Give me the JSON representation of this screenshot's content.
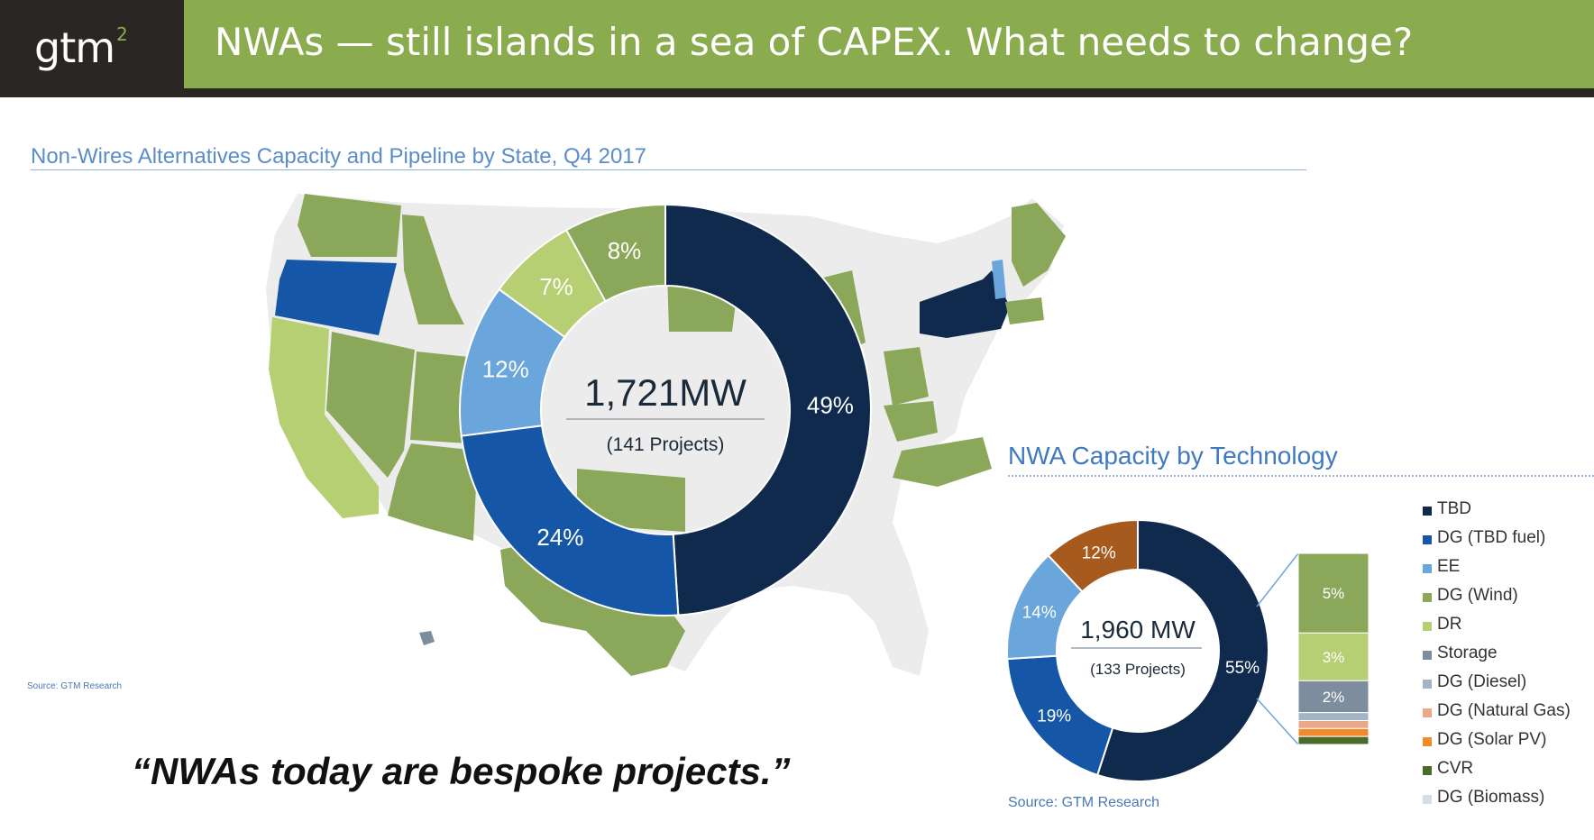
{
  "header": {
    "logo_text": "gtm",
    "logo_sup": "2",
    "title": "NWAs — still islands in a sea of CAPEX. What needs to change?"
  },
  "colors": {
    "header_bg": "#2a2624",
    "accent_green": "#8bab4f",
    "navy": "#0f2a4d",
    "blue": "#1557a6",
    "light_blue": "#6aa5db",
    "green": "#8ba85a",
    "light_green": "#b5cf72",
    "orange_brown": "#a65a1e"
  },
  "map": {
    "title": "Non-Wires Alternatives Capacity and Pipeline by State, Q4 2017",
    "source": "Source: GTM Research",
    "center_value": "1,721MW",
    "center_sub": "(141 Projects)"
  },
  "tech": {
    "title": "NWA Capacity by Technology",
    "source": "Source: GTM Research",
    "center_value": "1,960 MW",
    "center_sub": "(133 Projects)"
  },
  "quote": "“NWAs today are bespoke projects.”",
  "chart_data": [
    {
      "type": "pie",
      "title": "Non-Wires Alternatives Capacity and Pipeline by State, Q4 2017",
      "center_label": "1,721MW",
      "center_sublabel": "(141 Projects)",
      "slices": [
        {
          "label": "49%",
          "value": 49,
          "color": "#0f2a4d"
        },
        {
          "label": "24%",
          "value": 24,
          "color": "#1557a6"
        },
        {
          "label": "12%",
          "value": 12,
          "color": "#6aa5db"
        },
        {
          "label": "7%",
          "value": 7,
          "color": "#b5cf72"
        },
        {
          "label": "8%",
          "value": 8,
          "color": "#8ba85a"
        }
      ]
    },
    {
      "type": "pie",
      "title": "NWA Capacity by Technology",
      "center_label": "1,960 MW",
      "center_sublabel": "(133 Projects)",
      "slices": [
        {
          "label": "55%",
          "value": 55,
          "color": "#0f2a4d"
        },
        {
          "label": "19%",
          "value": 19,
          "color": "#1557a6"
        },
        {
          "label": "14%",
          "value": 14,
          "color": "#6aa5db"
        },
        {
          "label": "12%",
          "value": 12,
          "color": "#a65a1e"
        }
      ],
      "breakdown_bar": {
        "segments": [
          {
            "label": "5%",
            "value": 5,
            "color": "#8ba85a"
          },
          {
            "label": "3%",
            "value": 3,
            "color": "#b5cf72"
          },
          {
            "label": "2%",
            "value": 2,
            "color": "#7d8d9d"
          },
          {
            "label": "",
            "value": 0.5,
            "color": "#a3b4c4"
          },
          {
            "label": "",
            "value": 0.5,
            "color": "#e8a98a"
          },
          {
            "label": "",
            "value": 0.5,
            "color": "#f08a2c"
          },
          {
            "label": "",
            "value": 0.5,
            "color": "#4a6b2c"
          }
        ]
      },
      "legend": [
        {
          "label": "TBD",
          "color": "#0f2a4d"
        },
        {
          "label": "DG (TBD fuel)",
          "color": "#1557a6"
        },
        {
          "label": "EE",
          "color": "#6aa5db"
        },
        {
          "label": "DG (Wind)",
          "color": "#8ba85a"
        },
        {
          "label": "DR",
          "color": "#b5cf72"
        },
        {
          "label": "Storage",
          "color": "#7d8d9d"
        },
        {
          "label": "DG (Diesel)",
          "color": "#a3b4c4"
        },
        {
          "label": "DG (Natural Gas)",
          "color": "#e8a98a"
        },
        {
          "label": "DG (Solar PV)",
          "color": "#f08a2c"
        },
        {
          "label": "CVR",
          "color": "#4a6b2c"
        },
        {
          "label": "DG (Biomass)",
          "color": "#d5dde6"
        }
      ]
    }
  ]
}
